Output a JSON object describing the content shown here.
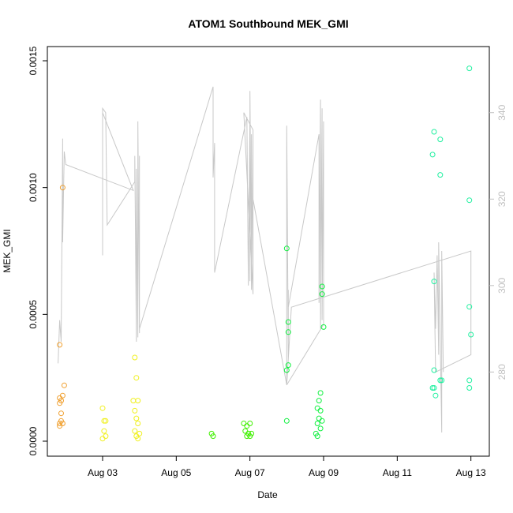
{
  "chart_data": {
    "type": "scatter",
    "title": "ATOM1 Southbound MEK_GMI",
    "xlabel": "Date",
    "ylabel": "MEK_GMI",
    "xlim": [
      "2025-08-01T12:00",
      "2025-08-13T12:00"
    ],
    "ylim": [
      0,
      0.0015
    ],
    "y2lim": [
      264,
      352
    ],
    "x_ticks": [
      {
        "date": "2025-08-03T00:00",
        "label": "Aug 03"
      },
      {
        "date": "2025-08-05T00:00",
        "label": "Aug 05"
      },
      {
        "date": "2025-08-07T00:00",
        "label": "Aug 07"
      },
      {
        "date": "2025-08-09T00:00",
        "label": "Aug 09"
      },
      {
        "date": "2025-08-11T00:00",
        "label": "Aug 11"
      },
      {
        "date": "2025-08-13T00:00",
        "label": "Aug 13"
      }
    ],
    "y_ticks": [
      {
        "value": 0,
        "label": "0.0000"
      },
      {
        "value": 0.0005,
        "label": "0.0005"
      },
      {
        "value": 0.001,
        "label": "0.0010"
      },
      {
        "value": 0.0015,
        "label": "0.0015"
      }
    ],
    "y2_ticks": [
      {
        "value": 280,
        "label": "280"
      },
      {
        "value": 300,
        "label": "300"
      },
      {
        "value": 320,
        "label": "320"
      },
      {
        "value": 340,
        "label": "340"
      }
    ],
    "grid": false,
    "series": [
      {
        "color": "#f0a030",
        "points": [
          [
            "2025-08-01T22:00",
            0.001
          ],
          [
            "2025-08-01T20:00",
            0.00038
          ],
          [
            "2025-08-01T23:00",
            0.00022
          ],
          [
            "2025-08-01T22:00",
            0.00018
          ],
          [
            "2025-08-01T20:00",
            0.00017
          ],
          [
            "2025-08-01T21:00",
            0.00016
          ],
          [
            "2025-08-01T20:00",
            0.00015
          ],
          [
            "2025-08-01T21:00",
            0.00011
          ],
          [
            "2025-08-01T21:00",
            8e-05
          ],
          [
            "2025-08-01T20:00",
            7e-05
          ],
          [
            "2025-08-01T20:00",
            6e-05
          ],
          [
            "2025-08-01T22:00",
            7e-05
          ]
        ]
      },
      {
        "color": "#f0f020",
        "points": [
          [
            "2025-08-03T00:00",
            0.00013
          ],
          [
            "2025-08-03T01:00",
            8e-05
          ],
          [
            "2025-08-03T02:00",
            8e-05
          ],
          [
            "2025-08-03T01:00",
            4e-05
          ],
          [
            "2025-08-03T02:00",
            2e-05
          ],
          [
            "2025-08-03T00:00",
            1e-05
          ],
          [
            "2025-08-03T21:00",
            0.00033
          ],
          [
            "2025-08-03T22:00",
            0.00025
          ],
          [
            "2025-08-03T20:00",
            0.00016
          ],
          [
            "2025-08-03T23:00",
            0.00016
          ],
          [
            "2025-08-03T21:00",
            0.00012
          ],
          [
            "2025-08-03T22:00",
            9e-05
          ],
          [
            "2025-08-03T23:00",
            7e-05
          ],
          [
            "2025-08-03T21:00",
            4e-05
          ],
          [
            "2025-08-03T22:00",
            2e-05
          ],
          [
            "2025-08-03T23:00",
            1e-05
          ],
          [
            "2025-08-04T00:00",
            3e-05
          ]
        ]
      },
      {
        "color": "#40f000",
        "points": [
          [
            "2025-08-05T23:00",
            3e-05
          ],
          [
            "2025-08-06T00:00",
            2e-05
          ],
          [
            "2025-08-06T20:00",
            7e-05
          ],
          [
            "2025-08-06T22:00",
            6e-05
          ],
          [
            "2025-08-07T00:00",
            7e-05
          ],
          [
            "2025-08-06T21:00",
            4e-05
          ],
          [
            "2025-08-06T22:00",
            2e-05
          ],
          [
            "2025-08-06T23:00",
            3e-05
          ],
          [
            "2025-08-07T00:00",
            2e-05
          ],
          [
            "2025-08-07T01:00",
            3e-05
          ]
        ]
      },
      {
        "color": "#10f040",
        "points": [
          [
            "2025-08-08T00:00",
            0.00076
          ],
          [
            "2025-08-08T01:00",
            0.00047
          ],
          [
            "2025-08-08T01:00",
            0.00043
          ],
          [
            "2025-08-08T01:00",
            0.0003
          ],
          [
            "2025-08-08T00:00",
            0.00028
          ],
          [
            "2025-08-08T00:00",
            8e-05
          ],
          [
            "2025-08-08T23:00",
            0.00061
          ],
          [
            "2025-08-08T23:00",
            0.00058
          ],
          [
            "2025-08-09T00:00",
            0.00045
          ],
          [
            "2025-08-08T22:00",
            0.00019
          ],
          [
            "2025-08-08T21:00",
            0.00016
          ],
          [
            "2025-08-08T20:00",
            0.00013
          ],
          [
            "2025-08-08T22:00",
            0.00012
          ],
          [
            "2025-08-08T21:00",
            9e-05
          ],
          [
            "2025-08-08T23:00",
            8e-05
          ],
          [
            "2025-08-08T20:00",
            7e-05
          ],
          [
            "2025-08-08T22:00",
            5e-05
          ],
          [
            "2025-08-08T19:00",
            3e-05
          ],
          [
            "2025-08-08T20:00",
            2e-05
          ]
        ]
      },
      {
        "color": "#20f0a0",
        "points": [
          [
            "2025-08-12T00:00",
            0.00122
          ],
          [
            "2025-08-12T04:00",
            0.00119
          ],
          [
            "2025-08-11T23:00",
            0.00113
          ],
          [
            "2025-08-12T04:00",
            0.00105
          ],
          [
            "2025-08-12T00:00",
            0.00063
          ],
          [
            "2025-08-12T00:00",
            0.00028
          ],
          [
            "2025-08-12T04:00",
            0.00024
          ],
          [
            "2025-08-12T05:00",
            0.00024
          ],
          [
            "2025-08-11T23:00",
            0.00021
          ],
          [
            "2025-08-12T00:00",
            0.00021
          ],
          [
            "2025-08-12T01:00",
            0.00018
          ],
          [
            "2025-08-12T23:00",
            0.00147
          ],
          [
            "2025-08-12T23:00",
            0.00095
          ],
          [
            "2025-08-12T23:00",
            0.00053
          ],
          [
            "2025-08-13T00:00",
            0.00042
          ],
          [
            "2025-08-12T23:00",
            0.00024
          ],
          [
            "2025-08-12T23:00",
            0.00021
          ]
        ]
      }
    ],
    "line_series": {
      "color": "#c8c8c8",
      "axis": "right",
      "points": [
        [
          "2025-08-01T19:00",
          282
        ],
        [
          "2025-08-01T20:00",
          292
        ],
        [
          "2025-08-01T21:00",
          287
        ],
        [
          "2025-08-01T22:00",
          334
        ],
        [
          "2025-08-01T22:00",
          310
        ],
        [
          "2025-08-01T23:00",
          331
        ],
        [
          "2025-08-02T00:00",
          328
        ],
        [
          "2025-08-03T20:00",
          322
        ],
        [
          "2025-08-03T00:00",
          340
        ],
        [
          "2025-08-03T00:00",
          307
        ],
        [
          "2025-08-03T00:00",
          341
        ],
        [
          "2025-08-03T02:00",
          340
        ],
        [
          "2025-08-03T03:00",
          314
        ],
        [
          "2025-08-03T21:00",
          324
        ],
        [
          "2025-08-03T21:00",
          330
        ],
        [
          "2025-08-03T22:00",
          287
        ],
        [
          "2025-08-03T22:00",
          327
        ],
        [
          "2025-08-03T23:00",
          288
        ],
        [
          "2025-08-03T23:00",
          338
        ],
        [
          "2025-08-04T00:00",
          289
        ],
        [
          "2025-08-04T00:00",
          330
        ],
        [
          "2025-08-04T00:00",
          290
        ],
        [
          "2025-08-06T00:00",
          346
        ],
        [
          "2025-08-06T00:00",
          325
        ],
        [
          "2025-08-06T01:00",
          333
        ],
        [
          "2025-08-06T01:00",
          303
        ],
        [
          "2025-08-06T22:00",
          339
        ],
        [
          "2025-08-06T23:00",
          300
        ],
        [
          "2025-08-07T00:00",
          339
        ],
        [
          "2025-08-07T00:00",
          301
        ],
        [
          "2025-08-07T00:00",
          345
        ],
        [
          "2025-08-07T01:00",
          299
        ],
        [
          "2025-08-07T01:00",
          335
        ],
        [
          "2025-08-07T02:00",
          298
        ],
        [
          "2025-08-06T20:00",
          340
        ],
        [
          "2025-08-07T02:00",
          336
        ],
        [
          "2025-08-07T02:00",
          298
        ],
        [
          "2025-08-07T02:00",
          320
        ],
        [
          "2025-08-08T00:00",
          277
        ],
        [
          "2025-08-08T00:00",
          337
        ],
        [
          "2025-08-08T01:00",
          283
        ],
        [
          "2025-08-08T01:00",
          299
        ],
        [
          "2025-08-08T01:00",
          295
        ],
        [
          "2025-08-08T21:00",
          335
        ],
        [
          "2025-08-08T21:00",
          296
        ],
        [
          "2025-08-08T22:00",
          343
        ],
        [
          "2025-08-08T22:00",
          290
        ],
        [
          "2025-08-08T23:00",
          341
        ],
        [
          "2025-08-08T23:00",
          292
        ],
        [
          "2025-08-09T00:00",
          338
        ],
        [
          "2025-08-09T00:00",
          291
        ],
        [
          "2025-08-08T00:00",
          277
        ],
        [
          "2025-08-08T03:00",
          295
        ],
        [
          "2025-08-13T00:00",
          308
        ],
        [
          "2025-08-13T00:00",
          284
        ],
        [
          "2025-08-12T01:00",
          280
        ],
        [
          "2025-08-12T00:00",
          303
        ],
        [
          "2025-08-12T01:00",
          290
        ],
        [
          "2025-08-12T02:00",
          307
        ],
        [
          "2025-08-12T03:00",
          284
        ],
        [
          "2025-08-12T03:00",
          310
        ],
        [
          "2025-08-12T05:00",
          266
        ],
        [
          "2025-08-12T05:00",
          308
        ],
        [
          "2025-08-12T06:00",
          280
        ]
      ]
    }
  }
}
